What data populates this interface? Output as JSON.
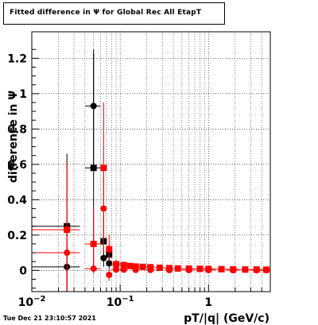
{
  "title": "Fitted difference in  Ψ  for Global Rec All EtapT",
  "timestamp": "Tue Dec 21 23:10:57 2021",
  "chart_data": {
    "type": "scatter",
    "title": "Fitted difference in  Ψ  for Global Rec All EtapT",
    "xlabel": "pT/|q| (GeV/c)",
    "ylabel": "difference in  Ψ",
    "xscale": "log",
    "xlim": [
      0.01,
      5.0
    ],
    "ylim": [
      -0.12,
      1.35
    ],
    "grid": true,
    "x_ticks": [
      {
        "value": 0.01,
        "label": "10",
        "exp": "−2"
      },
      {
        "value": 0.1,
        "label": "10",
        "exp": "−1"
      },
      {
        "value": 1,
        "label": "1",
        "exp": ""
      }
    ],
    "y_ticks": [
      {
        "value": 0,
        "label": "0"
      },
      {
        "value": 0.2,
        "label": "0.2"
      },
      {
        "value": 0.4,
        "label": "0.4"
      },
      {
        "value": 0.6,
        "label": "0.6"
      },
      {
        "value": 0.8,
        "label": "0.8"
      },
      {
        "value": 1.0,
        "label": "1"
      },
      {
        "value": 1.2,
        "label": "1.2"
      }
    ],
    "series": [
      {
        "color": "#000000",
        "marker": "square",
        "points": [
          {
            "x": 0.025,
            "y": 0.25,
            "xlo": 0.01,
            "xhi": 0.035,
            "ylo": -0.12,
            "yhi": 0.66
          },
          {
            "x": 0.05,
            "y": 0.58,
            "xlo": 0.04,
            "xhi": 0.06,
            "ylo": 0.0,
            "yhi": 1.23
          },
          {
            "x": 0.065,
            "y": 0.165,
            "xlo": 0.06,
            "xhi": 0.07,
            "ylo": 0.05,
            "yhi": 0.3
          },
          {
            "x": 0.075,
            "y": 0.09,
            "xlo": 0.07,
            "xhi": 0.08,
            "ylo": 0.03,
            "yhi": 0.15
          }
        ]
      },
      {
        "color": "#000000",
        "marker": "circle",
        "points": [
          {
            "x": 0.025,
            "y": 0.02,
            "xlo": 0.01,
            "xhi": 0.035,
            "ylo": -0.12,
            "yhi": 0.15
          },
          {
            "x": 0.05,
            "y": 0.93,
            "xlo": 0.04,
            "xhi": 0.06,
            "ylo": 0.6,
            "yhi": 1.25
          },
          {
            "x": 0.065,
            "y": 0.07,
            "xlo": 0.06,
            "xhi": 0.07,
            "ylo": 0.02,
            "yhi": 0.12
          },
          {
            "x": 0.075,
            "y": 0.04,
            "xlo": 0.07,
            "xhi": 0.08,
            "ylo": 0.01,
            "yhi": 0.07
          }
        ]
      },
      {
        "color": "#ff0000",
        "marker": "square",
        "points": [
          {
            "x": 0.025,
            "y": 0.23,
            "xlo": 0.01,
            "xhi": 0.035,
            "ylo": -0.12,
            "yhi": 0.61
          },
          {
            "x": 0.05,
            "y": 0.15,
            "xlo": 0.04,
            "xhi": 0.06,
            "ylo": 0.0,
            "yhi": 0.35
          },
          {
            "x": 0.065,
            "y": 0.58,
            "xlo": 0.06,
            "xhi": 0.07,
            "ylo": 0.15,
            "yhi": 0.95
          },
          {
            "x": 0.075,
            "y": 0.12,
            "xlo": 0.07,
            "xhi": 0.08,
            "ylo": 0.05,
            "yhi": 0.2
          },
          {
            "x": 0.09,
            "y": 0.035,
            "xlo": 0.08,
            "xhi": 0.1,
            "ylo": 0.01,
            "yhi": 0.06
          },
          {
            "x": 0.11,
            "y": 0.03,
            "xlo": 0.1,
            "xhi": 0.12,
            "ylo": 0.01,
            "yhi": 0.05
          },
          {
            "x": 0.13,
            "y": 0.025,
            "xlo": 0.12,
            "xhi": 0.14,
            "ylo": 0.01,
            "yhi": 0.04
          },
          {
            "x": 0.15,
            "y": 0.022,
            "xlo": 0.14,
            "xhi": 0.16,
            "ylo": 0.01,
            "yhi": 0.035
          },
          {
            "x": 0.18,
            "y": 0.02,
            "xlo": 0.16,
            "xhi": 0.2,
            "ylo": 0.01,
            "yhi": 0.03
          },
          {
            "x": 0.22,
            "y": 0.018,
            "xlo": 0.2,
            "xhi": 0.25,
            "ylo": 0.01,
            "yhi": 0.026
          },
          {
            "x": 0.28,
            "y": 0.015,
            "xlo": 0.25,
            "xhi": 0.32,
            "ylo": 0.008,
            "yhi": 0.022
          },
          {
            "x": 0.36,
            "y": 0.013,
            "xlo": 0.32,
            "xhi": 0.4,
            "ylo": 0.007,
            "yhi": 0.019
          },
          {
            "x": 0.45,
            "y": 0.011,
            "xlo": 0.4,
            "xhi": 0.5,
            "ylo": 0.006,
            "yhi": 0.016
          },
          {
            "x": 0.6,
            "y": 0.01,
            "xlo": 0.5,
            "xhi": 0.7,
            "ylo": 0.005,
            "yhi": 0.015
          },
          {
            "x": 0.8,
            "y": 0.009,
            "xlo": 0.7,
            "xhi": 0.9,
            "ylo": 0.005,
            "yhi": 0.013
          },
          {
            "x": 1.0,
            "y": 0.008,
            "xlo": 0.9,
            "xhi": 1.2,
            "ylo": 0.004,
            "yhi": 0.012
          },
          {
            "x": 1.4,
            "y": 0.007,
            "xlo": 1.2,
            "xhi": 1.6,
            "ylo": 0.004,
            "yhi": 0.01
          },
          {
            "x": 1.9,
            "y": 0.006,
            "xlo": 1.6,
            "xhi": 2.2,
            "ylo": 0.003,
            "yhi": 0.009
          },
          {
            "x": 2.6,
            "y": 0.005,
            "xlo": 2.2,
            "xhi": 3.0,
            "ylo": 0.003,
            "yhi": 0.008
          },
          {
            "x": 3.5,
            "y": 0.005,
            "xlo": 3.0,
            "xhi": 4.0,
            "ylo": 0.003,
            "yhi": 0.008
          },
          {
            "x": 4.5,
            "y": 0.004,
            "xlo": 4.0,
            "xhi": 5.0,
            "ylo": 0.002,
            "yhi": 0.007
          }
        ]
      },
      {
        "color": "#ff0000",
        "marker": "circle",
        "points": [
          {
            "x": 0.025,
            "y": 0.1,
            "xlo": 0.01,
            "xhi": 0.035,
            "ylo": -0.12,
            "yhi": 0.3
          },
          {
            "x": 0.05,
            "y": 0.01,
            "xlo": 0.04,
            "xhi": 0.06,
            "ylo": -0.02,
            "yhi": 0.04
          },
          {
            "x": 0.065,
            "y": 0.35,
            "xlo": 0.06,
            "xhi": 0.07,
            "ylo": 0.1,
            "yhi": 0.6
          },
          {
            "x": 0.075,
            "y": -0.025,
            "xlo": 0.07,
            "xhi": 0.08,
            "ylo": -0.06,
            "yhi": 0.01
          },
          {
            "x": 0.09,
            "y": 0.005,
            "xlo": 0.08,
            "xhi": 0.1,
            "ylo": -0.01,
            "yhi": 0.02
          },
          {
            "x": 0.11,
            "y": 0.004,
            "xlo": 0.1,
            "xhi": 0.12,
            "ylo": -0.01,
            "yhi": 0.018
          },
          {
            "x": 0.15,
            "y": 0.003,
            "xlo": 0.14,
            "xhi": 0.16,
            "ylo": -0.005,
            "yhi": 0.012
          },
          {
            "x": 0.22,
            "y": 0.003,
            "xlo": 0.2,
            "xhi": 0.25,
            "ylo": -0.004,
            "yhi": 0.01
          },
          {
            "x": 0.36,
            "y": 0.002,
            "xlo": 0.32,
            "xhi": 0.4,
            "ylo": -0.003,
            "yhi": 0.008
          },
          {
            "x": 0.6,
            "y": 0.002,
            "xlo": 0.5,
            "xhi": 0.7,
            "ylo": -0.002,
            "yhi": 0.006
          },
          {
            "x": 1.0,
            "y": 0.002,
            "xlo": 0.9,
            "xhi": 1.2,
            "ylo": -0.002,
            "yhi": 0.006
          },
          {
            "x": 1.9,
            "y": 0.001,
            "xlo": 1.6,
            "xhi": 2.2,
            "ylo": -0.002,
            "yhi": 0.005
          },
          {
            "x": 3.5,
            "y": 0.001,
            "xlo": 3.0,
            "xhi": 4.0,
            "ylo": -0.002,
            "yhi": 0.005
          },
          {
            "x": 4.5,
            "y": 0.001,
            "xlo": 4.0,
            "xhi": 5.0,
            "ylo": -0.002,
            "yhi": 0.004
          }
        ]
      }
    ]
  }
}
